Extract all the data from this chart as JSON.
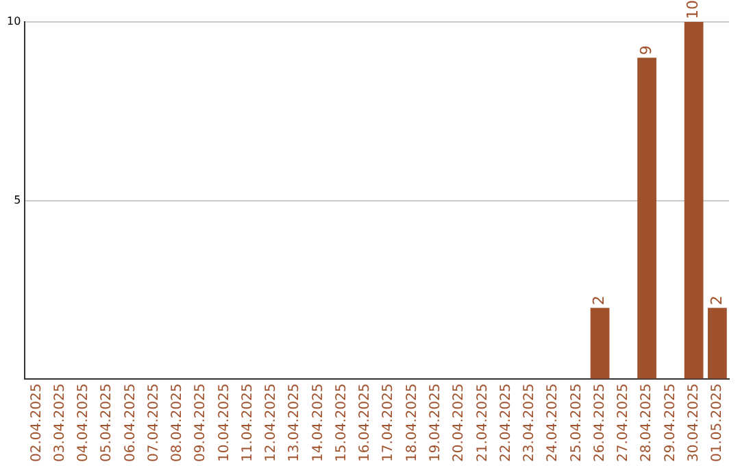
{
  "chart_data": {
    "type": "bar",
    "categories": [
      "02.04.2025",
      "03.04.2025",
      "04.04.2025",
      "05.04.2025",
      "06.04.2025",
      "07.04.2025",
      "08.04.2025",
      "09.04.2025",
      "10.04.2025",
      "11.04.2025",
      "12.04.2025",
      "13.04.2025",
      "14.04.2025",
      "15.04.2025",
      "16.04.2025",
      "17.04.2025",
      "18.04.2025",
      "19.04.2025",
      "20.04.2025",
      "21.04.2025",
      "22.04.2025",
      "23.04.2025",
      "24.04.2025",
      "25.04.2025",
      "26.04.2025",
      "27.04.2025",
      "28.04.2025",
      "29.04.2025",
      "30.04.2025",
      "01.05.2025"
    ],
    "values": [
      0,
      0,
      0,
      0,
      0,
      0,
      0,
      0,
      0,
      0,
      0,
      0,
      0,
      0,
      0,
      0,
      0,
      0,
      0,
      0,
      0,
      0,
      0,
      0,
      2,
      0,
      9,
      0,
      10,
      2
    ],
    "value_labels": [
      null,
      null,
      null,
      null,
      null,
      null,
      null,
      null,
      null,
      null,
      null,
      null,
      null,
      null,
      null,
      null,
      null,
      null,
      null,
      null,
      null,
      null,
      null,
      null,
      "2",
      null,
      "9",
      null,
      "10",
      "2"
    ],
    "color": "#a0522d",
    "ylim": [
      0,
      10
    ],
    "yticks": [
      {
        "value": 0,
        "label": null
      },
      5,
      10
    ],
    "grid": "y"
  }
}
